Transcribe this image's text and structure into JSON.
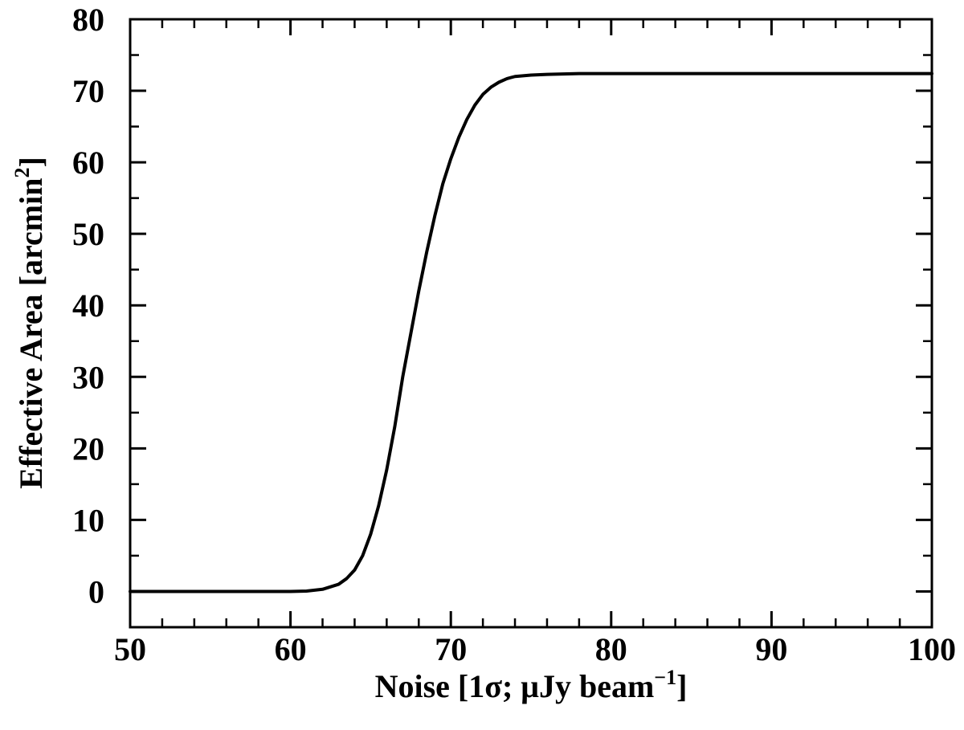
{
  "chart_data": {
    "type": "line",
    "title": "",
    "xlabel": {
      "main": "Noise [1σ; μJy beam",
      "sup": "−1",
      "close": "]"
    },
    "ylabel": {
      "main": "Effective Area [arcmin",
      "sup": "2",
      "close": "]"
    },
    "xlim": [
      50,
      100
    ],
    "ylim": [
      -5,
      80
    ],
    "x_ticks": [
      50,
      60,
      70,
      80,
      90,
      100
    ],
    "y_ticks": [
      0,
      10,
      20,
      30,
      40,
      50,
      60,
      70,
      80
    ],
    "x_minor_step": 2,
    "y_minor_step": 5,
    "grid": false,
    "legend": "none",
    "line_color": "#000000",
    "series": [
      {
        "x": [
          50,
          55,
          60,
          61,
          62,
          63,
          63.5,
          64,
          64.5,
          65,
          65.5,
          66,
          66.5,
          67,
          67.5,
          68,
          68.5,
          69,
          69.5,
          70,
          70.5,
          71,
          71.5,
          72,
          72.5,
          73,
          73.5,
          74,
          75,
          76,
          77,
          78,
          80,
          85,
          90,
          95,
          100
        ],
        "y": [
          0,
          0,
          0,
          0.05,
          0.3,
          1.0,
          1.8,
          3.0,
          5.0,
          8.0,
          12.0,
          17.0,
          23.0,
          30.0,
          36.0,
          42.0,
          47.5,
          52.5,
          57.0,
          60.5,
          63.5,
          66.0,
          68.0,
          69.5,
          70.5,
          71.2,
          71.7,
          72.0,
          72.2,
          72.3,
          72.35,
          72.4,
          72.4,
          72.4,
          72.4,
          72.4,
          72.4
        ]
      }
    ]
  }
}
